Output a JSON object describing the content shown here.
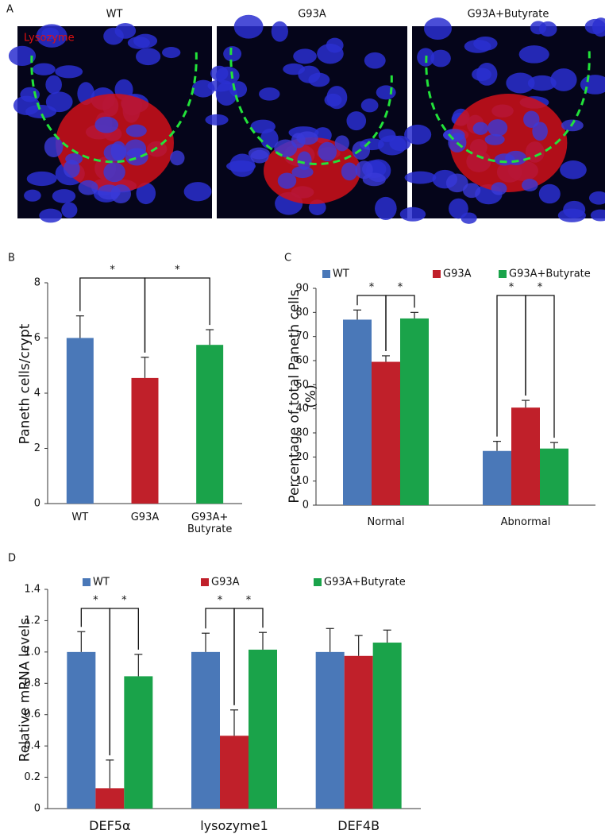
{
  "panel_a": {
    "label": "A",
    "titles": [
      "WT",
      "G93A",
      "G93A+Butyrate"
    ],
    "stain": "Lysozyme"
  },
  "chart_data": [
    {
      "type": "bar",
      "panel": "B",
      "ylabel": "Paneth cells/crypt",
      "categories": [
        "WT",
        "G93A",
        "G93A+\nButyrate"
      ],
      "values": [
        6.0,
        4.55,
        5.75
      ],
      "errors": [
        0.8,
        0.75,
        0.55
      ],
      "colors": [
        "#4a78b8",
        "#c0202a",
        "#1aa34a"
      ],
      "ylim": [
        0,
        8
      ],
      "yticks": [
        0,
        2,
        4,
        6,
        8
      ],
      "annotations": [
        "*",
        "*"
      ]
    },
    {
      "type": "bar",
      "panel": "C",
      "ylabel": "Percentage of total Paneth cells (%)",
      "categories": [
        "Normal",
        "Abnormal"
      ],
      "series": [
        {
          "name": "WT",
          "color": "#4a78b8",
          "values": [
            77,
            22.5
          ],
          "errors": [
            4,
            4
          ]
        },
        {
          "name": "G93A",
          "color": "#c0202a",
          "values": [
            59.5,
            40.5
          ],
          "errors": [
            2.5,
            3
          ]
        },
        {
          "name": "G93A+Butyrate",
          "color": "#1aa34a",
          "values": [
            77.5,
            23.5
          ],
          "errors": [
            2.5,
            2.5
          ]
        }
      ],
      "ylim": [
        0,
        90
      ],
      "yticks": [
        0,
        10,
        20,
        30,
        40,
        50,
        60,
        70,
        80,
        90
      ],
      "annotations": [
        "*",
        "*",
        "*",
        "*"
      ]
    },
    {
      "type": "bar",
      "panel": "D",
      "ylabel": "Relative mRNA levels",
      "categories": [
        "DEF5α",
        "lysozyme1",
        "DEF4B"
      ],
      "series": [
        {
          "name": "WT",
          "color": "#4a78b8",
          "values": [
            1.0,
            1.0,
            1.0
          ],
          "errors": [
            0.13,
            0.12,
            0.15
          ]
        },
        {
          "name": "G93A",
          "color": "#c0202a",
          "values": [
            0.13,
            0.465,
            0.975
          ],
          "errors": [
            0.18,
            0.165,
            0.13
          ]
        },
        {
          "name": "G93A+Butyrate",
          "color": "#1aa34a",
          "values": [
            0.845,
            1.015,
            1.06
          ],
          "errors": [
            0.14,
            0.11,
            0.08
          ]
        }
      ],
      "ylim": [
        0,
        1.4
      ],
      "yticks": [
        0,
        0.2,
        0.4,
        0.6,
        0.8,
        {
          "value": 1,
          "label": "1.0"
        },
        1.2,
        1.4
      ],
      "annotations": [
        "*",
        "*",
        "*",
        "*"
      ]
    }
  ]
}
